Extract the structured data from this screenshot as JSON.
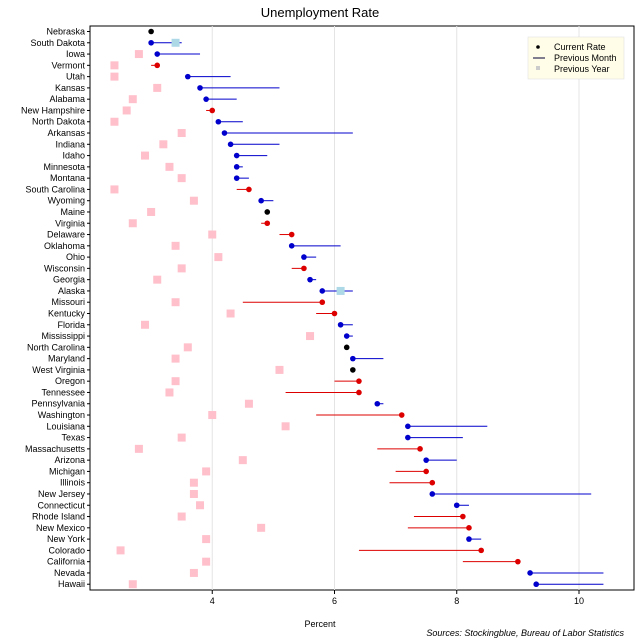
{
  "chart_data": {
    "type": "scatter",
    "title": "Unemployment Rate",
    "xlabel": "Percent",
    "source": "Sources: Stockingblue, Bureau of Labor Statistics",
    "xlim": [
      2.0,
      10.9
    ],
    "xticks": [
      4,
      6,
      8,
      10
    ],
    "legend": {
      "placement": "top-right",
      "items": [
        "Current Rate",
        "Previous Month",
        "Previous Year"
      ]
    },
    "colors": {
      "increase": "#dd0000",
      "decrease": "#0000cc",
      "unchanged": "#000000",
      "previous_year": "#ffc0cb",
      "previous_year_alt": "#add8e6",
      "legend_bg": "#fffde8"
    },
    "states": [
      {
        "name": "Nebraska",
        "current": 3.0,
        "prev_month": 3.0,
        "prev_year": 3.0
      },
      {
        "name": "South Dakota",
        "current": 3.0,
        "prev_month": 3.5,
        "prev_year": 3.4
      },
      {
        "name": "Iowa",
        "current": 3.1,
        "prev_month": 3.8,
        "prev_year": 2.8
      },
      {
        "name": "Vermont",
        "current": 3.1,
        "prev_month": 3.0,
        "prev_year": 2.4
      },
      {
        "name": "Utah",
        "current": 3.6,
        "prev_month": 4.3,
        "prev_year": 2.4
      },
      {
        "name": "Kansas",
        "current": 3.8,
        "prev_month": 5.1,
        "prev_year": 3.1
      },
      {
        "name": "Alabama",
        "current": 3.9,
        "prev_month": 4.4,
        "prev_year": 2.7
      },
      {
        "name": "New Hampshire",
        "current": 4.0,
        "prev_month": 3.9,
        "prev_year": 2.6
      },
      {
        "name": "North Dakota",
        "current": 4.1,
        "prev_month": 4.5,
        "prev_year": 2.4
      },
      {
        "name": "Arkansas",
        "current": 4.2,
        "prev_month": 6.3,
        "prev_year": 3.5
      },
      {
        "name": "Indiana",
        "current": 4.3,
        "prev_month": 5.1,
        "prev_year": 3.2
      },
      {
        "name": "Idaho",
        "current": 4.4,
        "prev_month": 4.9,
        "prev_year": 2.9
      },
      {
        "name": "Minnesota",
        "current": 4.4,
        "prev_month": 4.5,
        "prev_year": 3.3
      },
      {
        "name": "Montana",
        "current": 4.4,
        "prev_month": 4.6,
        "prev_year": 3.5
      },
      {
        "name": "South Carolina",
        "current": 4.6,
        "prev_month": 4.4,
        "prev_year": 2.4
      },
      {
        "name": "Wyoming",
        "current": 4.8,
        "prev_month": 5.0,
        "prev_year": 3.7
      },
      {
        "name": "Maine",
        "current": 4.9,
        "prev_month": 4.9,
        "prev_year": 3.0
      },
      {
        "name": "Virginia",
        "current": 4.9,
        "prev_month": 4.8,
        "prev_year": 2.7
      },
      {
        "name": "Delaware",
        "current": 5.3,
        "prev_month": 5.1,
        "prev_year": 4.0
      },
      {
        "name": "Oklahoma",
        "current": 5.3,
        "prev_month": 6.1,
        "prev_year": 3.4
      },
      {
        "name": "Ohio",
        "current": 5.5,
        "prev_month": 5.7,
        "prev_year": 4.1
      },
      {
        "name": "Wisconsin",
        "current": 5.5,
        "prev_month": 5.3,
        "prev_year": 3.5
      },
      {
        "name": "Georgia",
        "current": 5.6,
        "prev_month": 5.7,
        "prev_year": 3.1
      },
      {
        "name": "Alaska",
        "current": 5.8,
        "prev_month": 6.3,
        "prev_year": 6.1
      },
      {
        "name": "Missouri",
        "current": 5.8,
        "prev_month": 4.5,
        "prev_year": 3.4
      },
      {
        "name": "Kentucky",
        "current": 6.0,
        "prev_month": 5.7,
        "prev_year": 4.3
      },
      {
        "name": "Florida",
        "current": 6.1,
        "prev_month": 6.3,
        "prev_year": 2.9
      },
      {
        "name": "Mississippi",
        "current": 6.2,
        "prev_month": 6.3,
        "prev_year": 5.6
      },
      {
        "name": "North Carolina",
        "current": 6.2,
        "prev_month": 6.2,
        "prev_year": 3.6
      },
      {
        "name": "Maryland",
        "current": 6.3,
        "prev_month": 6.8,
        "prev_year": 3.4
      },
      {
        "name": "West Virginia",
        "current": 6.3,
        "prev_month": 6.3,
        "prev_year": 5.1
      },
      {
        "name": "Oregon",
        "current": 6.4,
        "prev_month": 6.0,
        "prev_year": 3.4
      },
      {
        "name": "Tennessee",
        "current": 6.4,
        "prev_month": 5.2,
        "prev_year": 3.3
      },
      {
        "name": "Pennsylvania",
        "current": 6.7,
        "prev_month": 6.8,
        "prev_year": 4.6
      },
      {
        "name": "Washington",
        "current": 7.1,
        "prev_month": 5.7,
        "prev_year": 4.0
      },
      {
        "name": "Louisiana",
        "current": 7.2,
        "prev_month": 8.5,
        "prev_year": 5.2
      },
      {
        "name": "Texas",
        "current": 7.2,
        "prev_month": 8.1,
        "prev_year": 3.5
      },
      {
        "name": "Massachusetts",
        "current": 7.4,
        "prev_month": 6.7,
        "prev_year": 2.8
      },
      {
        "name": "Arizona",
        "current": 7.5,
        "prev_month": 8.0,
        "prev_year": 4.5
      },
      {
        "name": "Michigan",
        "current": 7.5,
        "prev_month": 7.0,
        "prev_year": 3.9
      },
      {
        "name": "Illinois",
        "current": 7.6,
        "prev_month": 6.9,
        "prev_year": 3.7
      },
      {
        "name": "New Jersey",
        "current": 7.6,
        "prev_month": 10.2,
        "prev_year": 3.7
      },
      {
        "name": "Connecticut",
        "current": 8.0,
        "prev_month": 8.2,
        "prev_year": 3.8
      },
      {
        "name": "Rhode Island",
        "current": 8.1,
        "prev_month": 7.3,
        "prev_year": 3.5
      },
      {
        "name": "New Mexico",
        "current": 8.2,
        "prev_month": 7.2,
        "prev_year": 4.8
      },
      {
        "name": "New York",
        "current": 8.2,
        "prev_month": 8.4,
        "prev_year": 3.9
      },
      {
        "name": "Colorado",
        "current": 8.4,
        "prev_month": 6.4,
        "prev_year": 2.5
      },
      {
        "name": "California",
        "current": 9.0,
        "prev_month": 8.1,
        "prev_year": 3.9
      },
      {
        "name": "Nevada",
        "current": 9.2,
        "prev_month": 10.4,
        "prev_year": 3.7
      },
      {
        "name": "Hawaii",
        "current": 9.3,
        "prev_month": 10.4,
        "prev_year": 2.7
      }
    ]
  }
}
